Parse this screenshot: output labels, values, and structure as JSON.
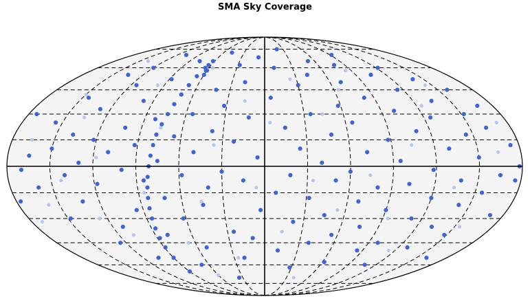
{
  "chart_data": {
    "type": "scatter",
    "title": "SMA Sky Coverage",
    "projection": "mollweide",
    "x_unit": "degrees (longitude, -180 to 180)",
    "y_unit": "degrees (latitude, -90 to 90)",
    "meridians_dashed": [
      -150,
      -120,
      -90,
      -60,
      -30,
      30,
      60,
      90,
      120,
      150
    ],
    "parallels_dashed": [
      -75,
      -60,
      -45,
      -30,
      -15,
      15,
      30,
      45,
      60,
      75
    ],
    "solid_axes": {
      "equator": 0,
      "central_meridian": 0
    },
    "grid": true,
    "colors": {
      "dark_point": "#3f64d6",
      "light_point": "#b8c6ee",
      "background": "#f4f4f4",
      "frame": "#000000"
    },
    "series": [
      {
        "values": [
          [
            -170,
            -2
          ],
          [
            -165,
            6
          ],
          [
            -160,
            -12
          ],
          [
            -155,
            25
          ],
          [
            -150,
            10
          ],
          [
            -148,
            -30
          ],
          [
            -145,
            40
          ],
          [
            -140,
            -5
          ],
          [
            -138,
            18
          ],
          [
            -135,
            55
          ],
          [
            -132,
            -20
          ],
          [
            -130,
            2
          ],
          [
            -128,
            33
          ],
          [
            -125,
            -45
          ],
          [
            -122,
            15
          ],
          [
            -120,
            60
          ],
          [
            -118,
            -10
          ],
          [
            -115,
            48
          ],
          [
            -112,
            -35
          ],
          [
            -110,
            8
          ],
          [
            -108,
            70
          ],
          [
            -105,
            -55
          ],
          [
            -102,
            22
          ],
          [
            -100,
            -2
          ],
          [
            -98,
            38
          ],
          [
            -95,
            -25
          ],
          [
            -92,
            12
          ],
          [
            -90,
            -65
          ],
          [
            -88,
            52
          ],
          [
            -85,
            -8
          ],
          [
            -82,
            27
          ],
          [
            -80,
            -40
          ],
          [
            -78,
            65
          ],
          [
            -75,
            3
          ],
          [
            -72,
            -18
          ],
          [
            -70,
            42
          ],
          [
            -68,
            -60
          ],
          [
            -65,
            17
          ],
          [
            -62,
            -30
          ],
          [
            -60,
            58
          ],
          [
            -58,
            -5
          ],
          [
            -55,
            30
          ],
          [
            -52,
            -48
          ],
          [
            -50,
            8
          ],
          [
            -48,
            72
          ],
          [
            -45,
            -22
          ],
          [
            -42,
            45
          ],
          [
            -40,
            -12
          ],
          [
            -38,
            20
          ],
          [
            -35,
            -70
          ],
          [
            -32,
            35
          ],
          [
            -30,
            -3
          ],
          [
            -28,
            62
          ],
          [
            -25,
            -38
          ],
          [
            -22,
            14
          ],
          [
            -20,
            -55
          ],
          [
            -18,
            50
          ],
          [
            -15,
            -8
          ],
          [
            -12,
            28
          ],
          [
            -10,
            -42
          ],
          [
            -8,
            68
          ],
          [
            -5,
            5
          ],
          [
            -3,
            -25
          ],
          [
            5,
            40
          ],
          [
            8,
            -15
          ],
          [
            10,
            60
          ],
          [
            12,
            -50
          ],
          [
            15,
            22
          ],
          [
            18,
            -5
          ],
          [
            20,
            75
          ],
          [
            22,
            -32
          ],
          [
            25,
            10
          ],
          [
            28,
            -62
          ],
          [
            30,
            48
          ],
          [
            32,
            -18
          ],
          [
            35,
            30
          ],
          [
            38,
            -45
          ],
          [
            40,
            2
          ],
          [
            42,
            55
          ],
          [
            45,
            -28
          ],
          [
            48,
            18
          ],
          [
            50,
            -8
          ],
          [
            52,
            65
          ],
          [
            55,
            -40
          ],
          [
            58,
            35
          ],
          [
            60,
            -3
          ],
          [
            62,
            -58
          ],
          [
            65,
            25
          ],
          [
            68,
            -20
          ],
          [
            70,
            50
          ],
          [
            72,
            8
          ],
          [
            75,
            -35
          ],
          [
            78,
            62
          ],
          [
            80,
            -12
          ],
          [
            82,
            40
          ],
          [
            85,
            -50
          ],
          [
            88,
            15
          ],
          [
            90,
            -25
          ],
          [
            92,
            70
          ],
          [
            95,
            3
          ],
          [
            98,
            -45
          ],
          [
            100,
            32
          ],
          [
            102,
            -10
          ],
          [
            105,
            55
          ],
          [
            108,
            -60
          ],
          [
            110,
            20
          ],
          [
            112,
            -30
          ],
          [
            115,
            45
          ],
          [
            118,
            -2
          ],
          [
            120,
            -18
          ],
          [
            122,
            60
          ],
          [
            125,
            28
          ],
          [
            128,
            -48
          ],
          [
            130,
            10
          ],
          [
            132,
            -35
          ],
          [
            135,
            38
          ],
          [
            138,
            -8
          ],
          [
            140,
            52
          ],
          [
            142,
            -22
          ],
          [
            145,
            18
          ],
          [
            148,
            -40
          ],
          [
            150,
            5
          ],
          [
            152,
            30
          ],
          [
            155,
            -15
          ],
          [
            158,
            45
          ],
          [
            160,
            -55
          ],
          [
            162,
            22
          ],
          [
            165,
            -5
          ],
          [
            168,
            35
          ],
          [
            170,
            -28
          ],
          [
            174,
            12
          ],
          [
            176,
            -8
          ],
          [
            -174,
            30
          ],
          [
            -177,
            -20
          ],
          [
            178,
            0
          ]
        ],
        "style": "dark"
      },
      {
        "values": [
          [
            -166,
            15
          ],
          [
            -158,
            -22
          ],
          [
            -150,
            42
          ],
          [
            -143,
            -8
          ],
          [
            -136,
            28
          ],
          [
            -126,
            -30
          ],
          [
            -118,
            5
          ],
          [
            -108,
            -40
          ],
          [
            -96,
            48
          ],
          [
            -86,
            -15
          ],
          [
            -76,
            22
          ],
          [
            -66,
            -45
          ],
          [
            -56,
            60
          ],
          [
            -46,
            -20
          ],
          [
            -36,
            12
          ],
          [
            -26,
            -55
          ],
          [
            -16,
            38
          ],
          [
            -6,
            -12
          ],
          [
            4,
            25
          ],
          [
            14,
            -38
          ],
          [
            24,
            52
          ],
          [
            34,
            -8
          ],
          [
            44,
            30
          ],
          [
            54,
            -25
          ],
          [
            64,
            45
          ],
          [
            74,
            -5
          ],
          [
            84,
            58
          ],
          [
            94,
            -30
          ],
          [
            104,
            12
          ],
          [
            114,
            -50
          ],
          [
            124,
            35
          ],
          [
            134,
            -12
          ],
          [
            144,
            48
          ],
          [
            154,
            -35
          ],
          [
            164,
            8
          ],
          [
            172,
            25
          ],
          [
            -172,
            -32
          ],
          [
            -140,
            65
          ],
          [
            -60,
            -68
          ],
          [
            40,
            -70
          ]
        ],
        "style": "light"
      },
      {
        "values": [
          [
            -90,
            -55
          ],
          [
            -89,
            -48
          ],
          [
            -88,
            -42
          ],
          [
            -87,
            -36
          ],
          [
            -86,
            -30
          ],
          [
            -85,
            -24
          ],
          [
            -84,
            -18
          ],
          [
            -83,
            -12
          ],
          [
            -82,
            -6
          ],
          [
            -81,
            0
          ],
          [
            -80,
            6
          ],
          [
            -79,
            12
          ],
          [
            -78,
            18
          ],
          [
            -76,
            24
          ],
          [
            -74,
            30
          ],
          [
            -72,
            36
          ],
          [
            -70,
            42
          ],
          [
            -68,
            48
          ],
          [
            -66,
            54
          ],
          [
            -64,
            60
          ],
          [
            -62,
            65
          ],
          [
            -63,
            62
          ],
          [
            -61,
            58
          ],
          [
            -60,
            55
          ]
        ],
        "style": "dark",
        "name": ""
      }
    ]
  }
}
